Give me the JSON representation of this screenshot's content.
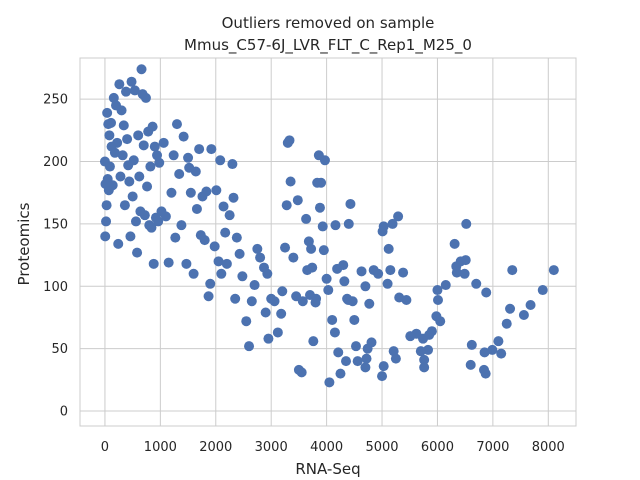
{
  "chart_data": {
    "type": "scatter",
    "title_line1": "Outliers removed on sample",
    "title_line2": "Mmus_C57-6J_LVR_FLT_C_Rep1_M25_0",
    "xlabel": "RNA-Seq",
    "ylabel": "Proteomics",
    "xlim": [
      -450,
      8500
    ],
    "ylim": [
      -12,
      283
    ],
    "xticks": [
      0,
      1000,
      2000,
      3000,
      4000,
      5000,
      6000,
      7000,
      8000
    ],
    "yticks": [
      0,
      50,
      100,
      150,
      200,
      250
    ],
    "grid": true,
    "marker_color": "#4c72b0",
    "background": "#ffffff",
    "grid_color": "#cccccc",
    "points": [
      [
        8100,
        113
      ],
      [
        7900,
        97
      ],
      [
        7680,
        85
      ],
      [
        7560,
        77
      ],
      [
        7350,
        113
      ],
      [
        7310,
        82
      ],
      [
        7250,
        70
      ],
      [
        7150,
        46
      ],
      [
        7100,
        56
      ],
      [
        6990,
        49
      ],
      [
        6880,
        95
      ],
      [
        6850,
        47
      ],
      [
        6840,
        33
      ],
      [
        6870,
        30
      ],
      [
        6700,
        102
      ],
      [
        6620,
        53
      ],
      [
        6600,
        37
      ],
      [
        6520,
        150
      ],
      [
        6490,
        110
      ],
      [
        6510,
        121
      ],
      [
        6420,
        120
      ],
      [
        6350,
        111
      ],
      [
        6340,
        116
      ],
      [
        6310,
        134
      ],
      [
        6150,
        101
      ],
      [
        6050,
        72
      ],
      [
        6010,
        89
      ],
      [
        6000,
        97
      ],
      [
        5980,
        76
      ],
      [
        5900,
        64
      ],
      [
        5850,
        61
      ],
      [
        5830,
        49
      ],
      [
        5760,
        41
      ],
      [
        5760,
        35
      ],
      [
        5740,
        58
      ],
      [
        5700,
        48
      ],
      [
        5620,
        62
      ],
      [
        5510,
        60
      ],
      [
        5440,
        89
      ],
      [
        5380,
        111
      ],
      [
        5310,
        91
      ],
      [
        5250,
        42
      ],
      [
        5290,
        156
      ],
      [
        5210,
        48
      ],
      [
        5190,
        150
      ],
      [
        5150,
        113
      ],
      [
        5120,
        130
      ],
      [
        5100,
        102
      ],
      [
        5030,
        148
      ],
      [
        5010,
        144
      ],
      [
        5030,
        36
      ],
      [
        5000,
        28
      ],
      [
        4930,
        110
      ],
      [
        4850,
        113
      ],
      [
        4810,
        55
      ],
      [
        4770,
        86
      ],
      [
        4740,
        50
      ],
      [
        4720,
        42
      ],
      [
        4700,
        35
      ],
      [
        4700,
        100
      ],
      [
        4630,
        112
      ],
      [
        4560,
        40
      ],
      [
        4530,
        52
      ],
      [
        4500,
        73
      ],
      [
        4470,
        88
      ],
      [
        4430,
        166
      ],
      [
        4400,
        150
      ],
      [
        4390,
        89
      ],
      [
        4370,
        90
      ],
      [
        4350,
        40
      ],
      [
        4320,
        104
      ],
      [
        4300,
        117
      ],
      [
        4250,
        30
      ],
      [
        4210,
        47
      ],
      [
        4190,
        114
      ],
      [
        4160,
        149
      ],
      [
        4150,
        63
      ],
      [
        4100,
        73
      ],
      [
        4050,
        23
      ],
      [
        4030,
        97
      ],
      [
        4000,
        106
      ],
      [
        3970,
        201
      ],
      [
        3950,
        129
      ],
      [
        3930,
        148
      ],
      [
        3900,
        183
      ],
      [
        3880,
        163
      ],
      [
        3860,
        205
      ],
      [
        3830,
        183
      ],
      [
        3810,
        90
      ],
      [
        3800,
        87
      ],
      [
        3760,
        56
      ],
      [
        3740,
        115
      ],
      [
        3720,
        130
      ],
      [
        3700,
        93
      ],
      [
        3680,
        136
      ],
      [
        3650,
        113
      ],
      [
        3630,
        154
      ],
      [
        3570,
        88
      ],
      [
        3550,
        31
      ],
      [
        3500,
        33
      ],
      [
        3480,
        169
      ],
      [
        3450,
        92
      ],
      [
        3400,
        123
      ],
      [
        3350,
        184
      ],
      [
        3330,
        217
      ],
      [
        3300,
        215
      ],
      [
        3280,
        165
      ],
      [
        3250,
        131
      ],
      [
        3200,
        96
      ],
      [
        3180,
        78
      ],
      [
        3120,
        63
      ],
      [
        3060,
        88
      ],
      [
        3000,
        90
      ],
      [
        2950,
        58
      ],
      [
        2930,
        110
      ],
      [
        2900,
        79
      ],
      [
        2870,
        115
      ],
      [
        2800,
        123
      ],
      [
        2750,
        130
      ],
      [
        2700,
        101
      ],
      [
        2650,
        88
      ],
      [
        2600,
        52
      ],
      [
        2550,
        72
      ],
      [
        2480,
        108
      ],
      [
        2430,
        126
      ],
      [
        2380,
        139
      ],
      [
        2350,
        90
      ],
      [
        2320,
        171
      ],
      [
        2300,
        198
      ],
      [
        2250,
        157
      ],
      [
        2200,
        118
      ],
      [
        2170,
        143
      ],
      [
        2140,
        164
      ],
      [
        2100,
        110
      ],
      [
        2080,
        201
      ],
      [
        2050,
        120
      ],
      [
        2010,
        177
      ],
      [
        1980,
        132
      ],
      [
        1920,
        210
      ],
      [
        1900,
        102
      ],
      [
        1870,
        92
      ],
      [
        1830,
        176
      ],
      [
        1800,
        137
      ],
      [
        1760,
        172
      ],
      [
        1730,
        141
      ],
      [
        1700,
        210
      ],
      [
        1660,
        162
      ],
      [
        1640,
        192
      ],
      [
        1600,
        110
      ],
      [
        1550,
        175
      ],
      [
        1520,
        195
      ],
      [
        1500,
        203
      ],
      [
        1470,
        118
      ],
      [
        1420,
        220
      ],
      [
        1380,
        149
      ],
      [
        1340,
        190
      ],
      [
        1300,
        230
      ],
      [
        1270,
        139
      ],
      [
        1240,
        205
      ],
      [
        1200,
        175
      ],
      [
        1150,
        119
      ],
      [
        1100,
        156
      ],
      [
        1060,
        215
      ],
      [
        1020,
        160
      ],
      [
        980,
        199
      ],
      [
        960,
        152
      ],
      [
        940,
        205
      ],
      [
        920,
        155
      ],
      [
        900,
        212
      ],
      [
        880,
        118
      ],
      [
        860,
        228
      ],
      [
        840,
        147
      ],
      [
        820,
        196
      ],
      [
        800,
        149
      ],
      [
        780,
        224
      ],
      [
        760,
        180
      ],
      [
        740,
        251
      ],
      [
        720,
        157
      ],
      [
        700,
        213
      ],
      [
        680,
        254
      ],
      [
        660,
        274
      ],
      [
        640,
        160
      ],
      [
        620,
        188
      ],
      [
        600,
        221
      ],
      [
        580,
        127
      ],
      [
        560,
        152
      ],
      [
        540,
        257
      ],
      [
        520,
        201
      ],
      [
        500,
        172
      ],
      [
        480,
        264
      ],
      [
        460,
        140
      ],
      [
        440,
        184
      ],
      [
        420,
        197
      ],
      [
        400,
        218
      ],
      [
        380,
        256
      ],
      [
        360,
        165
      ],
      [
        340,
        229
      ],
      [
        320,
        205
      ],
      [
        300,
        241
      ],
      [
        280,
        188
      ],
      [
        260,
        262
      ],
      [
        240,
        134
      ],
      [
        220,
        215
      ],
      [
        200,
        245
      ],
      [
        180,
        207
      ],
      [
        160,
        251
      ],
      [
        140,
        181
      ],
      [
        120,
        212
      ],
      [
        110,
        231
      ],
      [
        90,
        196
      ],
      [
        80,
        221
      ],
      [
        70,
        177
      ],
      [
        60,
        230
      ],
      [
        50,
        186
      ],
      [
        40,
        239
      ],
      [
        30,
        165
      ],
      [
        20,
        152
      ],
      [
        10,
        182
      ],
      [
        5,
        140
      ],
      [
        0,
        200
      ]
    ]
  }
}
